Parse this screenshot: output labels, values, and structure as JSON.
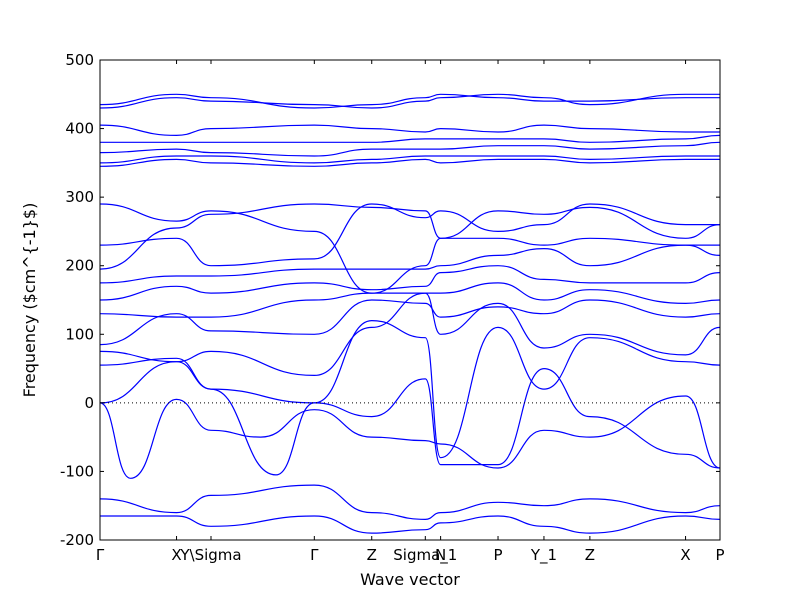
{
  "chart_data": {
    "type": "line",
    "xlabel": "Wave vector",
    "ylabel": "Frequency ($cm^{-1}$)",
    "ylim": [
      -200,
      500
    ],
    "yticks": [
      -200,
      -100,
      0,
      100,
      200,
      300,
      400,
      500
    ],
    "x_ticks": [
      "Γ",
      "X",
      "Y\\Sigma",
      "Γ",
      "Z",
      "Sigma_1",
      "N",
      "P",
      "Y_1",
      "Z",
      "X",
      "P"
    ],
    "x_tick_positions": [
      0,
      1.0,
      1.45,
      2.8,
      3.55,
      4.25,
      4.45,
      5.2,
      5.8,
      6.4,
      7.65,
      8.1
    ],
    "x_range": [
      0,
      8.1
    ],
    "zero_line": "dotted",
    "grid": false,
    "series_color": "#0000ff",
    "series": [
      {
        "x": [
          0,
          1,
          1.45,
          2.8,
          3.55,
          4.25,
          4.45,
          5.2,
          5.8,
          6.4,
          7.65,
          8.1
        ],
        "values": [
          -165,
          -165,
          -180,
          -165,
          -190,
          -185,
          -175,
          -165,
          -180,
          -190,
          -165,
          -170
        ]
      },
      {
        "x": [
          0,
          1,
          1.45,
          2.8,
          3.55,
          4.25,
          4.45,
          5.2,
          5.8,
          6.4,
          7.65,
          8.1
        ],
        "values": [
          -140,
          -160,
          -135,
          -120,
          -160,
          -170,
          -160,
          -145,
          -150,
          -140,
          -160,
          -150
        ]
      },
      {
        "x": [
          0,
          0.4,
          1,
          1.45,
          2.1,
          2.8,
          3.55,
          4.25,
          4.45,
          5.2,
          5.8,
          6.4,
          7.65,
          8.1
        ],
        "values": [
          0,
          -110,
          5,
          -40,
          -50,
          -10,
          -50,
          -55,
          -60,
          -95,
          -40,
          -50,
          10,
          -95
        ]
      },
      {
        "x": [
          0,
          1,
          1.45,
          2.3,
          2.8,
          3.55,
          4.25,
          4.45,
          5.2,
          5.8,
          6.4,
          7.65,
          8.1
        ],
        "values": [
          0,
          60,
          20,
          -105,
          0,
          -20,
          35,
          -90,
          -90,
          50,
          -20,
          -75,
          -95
        ]
      },
      {
        "x": [
          0,
          1,
          1.45,
          2.8,
          3.55,
          4.25,
          4.45,
          5.2,
          5.8,
          6.4,
          7.65,
          8.1
        ],
        "values": [
          55,
          65,
          20,
          0,
          120,
          95,
          -80,
          110,
          20,
          95,
          60,
          55
        ]
      },
      {
        "x": [
          0,
          1,
          1.45,
          2.8,
          3.55,
          4.25,
          4.45,
          5.2,
          5.8,
          6.4,
          7.65,
          8.1
        ],
        "values": [
          75,
          60,
          75,
          40,
          110,
          160,
          100,
          145,
          80,
          100,
          70,
          110
        ]
      },
      {
        "x": [
          0,
          1,
          1.45,
          2.8,
          3.55,
          4.25,
          4.45,
          5.2,
          5.8,
          6.4,
          7.65,
          8.1
        ],
        "values": [
          85,
          130,
          105,
          100,
          150,
          145,
          125,
          140,
          130,
          150,
          125,
          130
        ]
      },
      {
        "x": [
          0,
          1,
          1.45,
          2.8,
          3.55,
          4.25,
          4.45,
          5.2,
          5.8,
          6.4,
          7.65,
          8.1
        ],
        "values": [
          130,
          125,
          125,
          150,
          160,
          160,
          160,
          175,
          150,
          165,
          145,
          150
        ]
      },
      {
        "x": [
          0,
          1,
          1.45,
          2.8,
          3.55,
          4.25,
          4.45,
          5.2,
          5.8,
          6.4,
          7.65,
          8.1
        ],
        "values": [
          150,
          170,
          160,
          175,
          165,
          170,
          190,
          200,
          180,
          175,
          175,
          190
        ]
      },
      {
        "x": [
          0,
          1,
          1.45,
          2.8,
          3.55,
          4.25,
          4.45,
          5.2,
          5.8,
          6.4,
          7.65,
          8.1
        ],
        "values": [
          175,
          185,
          185,
          195,
          195,
          195,
          200,
          215,
          225,
          200,
          230,
          215
        ]
      },
      {
        "x": [
          0,
          1,
          1.45,
          2.8,
          3.55,
          4.25,
          4.45,
          5.2,
          5.8,
          6.4,
          7.65,
          8.1
        ],
        "values": [
          195,
          255,
          275,
          290,
          285,
          280,
          240,
          280,
          275,
          285,
          240,
          260
        ]
      },
      {
        "x": [
          0,
          1,
          1.45,
          2.8,
          3.55,
          4.25,
          4.45,
          5.2,
          5.8,
          6.4,
          7.65,
          8.1
        ],
        "values": [
          230,
          240,
          200,
          210,
          290,
          270,
          280,
          250,
          260,
          290,
          260,
          260
        ]
      },
      {
        "x": [
          0,
          1,
          1.45,
          2.8,
          3.55,
          4.25,
          4.45,
          5.2,
          5.8,
          6.4,
          7.65,
          8.1
        ],
        "values": [
          290,
          265,
          280,
          250,
          160,
          200,
          240,
          240,
          230,
          240,
          230,
          230
        ]
      },
      {
        "x": [
          0,
          1,
          1.45,
          2.8,
          3.55,
          4.25,
          4.45,
          5.2,
          5.8,
          6.4,
          7.65,
          8.1
        ],
        "values": [
          345,
          355,
          350,
          345,
          350,
          355,
          350,
          355,
          355,
          350,
          355,
          355
        ]
      },
      {
        "x": [
          0,
          1,
          1.45,
          2.8,
          3.55,
          4.25,
          4.45,
          5.2,
          5.8,
          6.4,
          7.65,
          8.1
        ],
        "values": [
          350,
          360,
          360,
          350,
          355,
          360,
          360,
          360,
          360,
          355,
          360,
          360
        ]
      },
      {
        "x": [
          0,
          1,
          1.45,
          2.8,
          3.55,
          4.25,
          4.45,
          5.2,
          5.8,
          6.4,
          7.65,
          8.1
        ],
        "values": [
          365,
          370,
          365,
          360,
          370,
          370,
          370,
          375,
          375,
          370,
          375,
          380
        ]
      },
      {
        "x": [
          0,
          1,
          1.45,
          2.8,
          3.55,
          4.25,
          4.45,
          5.2,
          5.8,
          6.4,
          7.65,
          8.1
        ],
        "values": [
          380,
          380,
          380,
          380,
          380,
          385,
          385,
          385,
          385,
          380,
          385,
          390
        ]
      },
      {
        "x": [
          0,
          1,
          1.45,
          2.8,
          3.55,
          4.25,
          4.45,
          5.2,
          5.8,
          6.4,
          7.65,
          8.1
        ],
        "values": [
          405,
          390,
          400,
          405,
          400,
          395,
          400,
          395,
          405,
          400,
          395,
          395
        ]
      },
      {
        "x": [
          0,
          1,
          1.45,
          2.8,
          3.55,
          4.25,
          4.45,
          5.2,
          5.8,
          6.4,
          7.65,
          8.1
        ],
        "values": [
          430,
          445,
          440,
          435,
          430,
          440,
          445,
          450,
          445,
          435,
          450,
          450
        ]
      },
      {
        "x": [
          0,
          1,
          1.45,
          2.8,
          3.55,
          4.25,
          4.45,
          5.2,
          5.8,
          6.4,
          7.65,
          8.1
        ],
        "values": [
          435,
          450,
          445,
          430,
          435,
          445,
          450,
          445,
          440,
          440,
          445,
          445
        ]
      }
    ]
  }
}
